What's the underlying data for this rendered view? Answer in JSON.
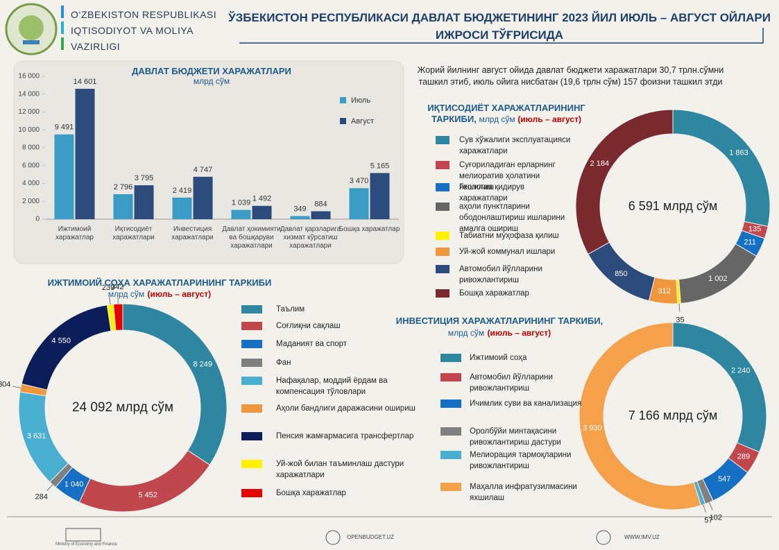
{
  "header": {
    "ministry": [
      "O‘ZBEKISTON RESPUBLIKASI",
      "IQTISODIYOT VA MOLIYA",
      "VAZIRLIGI"
    ],
    "title": [
      "ЎЗБЕКИСТОН РЕСПУБЛИКАСИ ДАВЛАТ БЮДЖЕТИНИНГ 2023 ЙИЛ ИЮЛЬ – АВГУСТ ОЙЛАРИ",
      "ИЖРОСИ ТЎҒРИСИДА"
    ]
  },
  "note": "Жорий йилнинг август ойида давлат бюджети харажатлари 30,7 трлн.сўмни ташкил этиб, июль ойига нисбатан (19,6 трлн сўм) 157 фоизни ташкил этди",
  "chart_data": [
    {
      "type": "bar",
      "title": "ДАВЛАТ БЮДЖЕТИ ХАРАЖАТЛАРИ",
      "subtitle": "млрд сўм",
      "categories": [
        "Ижтимоий харажатлар",
        "Иқтисодиёт харажатлари",
        "Инвестиция харажатлари",
        "Давлат ҳокимияти ва бошқаруви харажатлари",
        "Давлат қарзларига хизмат кўрсатиш харажатлари",
        "Бошқа харажатлар"
      ],
      "series": [
        {
          "name": "Июль",
          "color": "#3a9cc4",
          "values": [
            9491,
            2796,
            2419,
            1039,
            349,
            3470
          ],
          "value_labels": [
            "9 491",
            "2 796",
            "2 419",
            "1 039",
            "349",
            "3 470"
          ]
        },
        {
          "name": "Август",
          "color": "#2c4a7c",
          "values": [
            14601,
            3795,
            4747,
            1492,
            884,
            5165
          ],
          "value_labels": [
            "14 601",
            "3 795",
            "4 747",
            "1 492",
            "884",
            "5 165"
          ]
        }
      ],
      "ylim": [
        0,
        16000
      ],
      "yticks": [
        0,
        {
          "value": 2000,
          "label": "2 000"
        },
        {
          "value": 4000,
          "label": "4 000"
        },
        {
          "value": 6000,
          "label": "6 000"
        },
        {
          "value": 8000,
          "label": "8 000"
        },
        {
          "value": 10000,
          "label": "10 000"
        },
        {
          "value": 12000,
          "label": "12 000"
        },
        {
          "value": 14000,
          "label": "14 000"
        },
        {
          "value": 16000,
          "label": "16 000"
        }
      ],
      "grid": false,
      "legend": "right"
    },
    {
      "type": "donut",
      "title": "ИЖТИМОИЙ СОҲА ХАРАЖАТЛАРИНИНГ ТАРКИБИ",
      "subtitle": "млрд сўм",
      "period": "(июль – август)",
      "center_label": "24 092 млрд сўм",
      "categories": [
        "Таълим",
        "Соғлиқни сақлаш",
        "Маданият ва спорт",
        "Фан",
        "Нафақалар, моддий ёрдам ва компенсация тўловлари",
        "Аҳоли бандлиги даражасини ошириш",
        "Пенсия жамғармасига трансфертлар",
        "Уй-жой билан таъминлаш дастури харажатлари",
        "Бошқа харажатлар"
      ],
      "values": [
        8249,
        5452,
        1040,
        284,
        3631,
        304,
        4550,
        239,
        342
      ],
      "value_labels": [
        "8 249",
        "5 452",
        "1 040",
        "284",
        "3 631",
        "304",
        "4 550",
        "239",
        "342"
      ],
      "colors": [
        "#2e86a0",
        "#c0474d",
        "#1570c4",
        "#808080",
        "#4aaed0",
        "#f0963c",
        "#0c1e5a",
        "#fff200",
        "#e60000"
      ]
    },
    {
      "type": "donut",
      "title": "ИҚТИСОДИЁТ ХАРАЖАТЛАРИНИНГ ТАРКИБИ,",
      "subtitle": "млрд сўм",
      "period": "(июль – август)",
      "center_label": "6 591 млрд сўм",
      "categories": [
        "Сув хўжалиги эксплуатацияси харажатлари",
        "Суғориладиган ерларнинг мелиоратив ҳолатини яхшилаш",
        "Геология қидирув харажатлари",
        "аҳоли пунктларини ободонлаштириш ишларини амалга ошириш",
        "Табиатни муҳофаза қилиш",
        "Уй-жой коммунал ишлари",
        "Автомобил йўлларини ривожлантириш",
        "Бошқа харажатлар"
      ],
      "values": [
        1863,
        135,
        211,
        1002,
        35,
        312,
        850,
        2184
      ],
      "value_labels": [
        "1 863",
        "135",
        "211",
        "1 002",
        "35",
        "312",
        "850",
        "2 184"
      ],
      "colors": [
        "#2e86a0",
        "#c0474d",
        "#1570c4",
        "#666666",
        "#fff200",
        "#f0963c",
        "#2c4a7c",
        "#7a2a2e"
      ]
    },
    {
      "type": "donut",
      "title": "ИНВЕСТИЦИЯ ХАРАЖАТЛАРИНИНГ ТАРКИБИ,",
      "subtitle": "млрд сўм",
      "period": "(июль – август)",
      "center_label": "7 166 млрд сўм",
      "categories": [
        "Ижтимоий соҳа",
        "Автомобил йўлларини ривожлантириш",
        "Ичимлик суви ва канализация",
        "Оролбўйи минтақасини ривожлантириш дастури",
        "Мелиорация тармоқларини ривожлантириш",
        "Маҳалла инфратузилмасини яхшилаш"
      ],
      "values": [
        2240,
        289,
        547,
        102,
        57,
        3930
      ],
      "value_labels": [
        "2 240",
        "289",
        "547",
        "102",
        "57",
        "3 930"
      ],
      "colors": [
        "#2e86a0",
        "#c0474d",
        "#1570c4",
        "#808080",
        "#4aaed0",
        "#f5a04a"
      ]
    }
  ],
  "footer": {
    "ministry_en": "Ministry of Economy and Finance",
    "site1": "OPENBUDGET.UZ",
    "site2": "WWW.IMV.UZ"
  }
}
